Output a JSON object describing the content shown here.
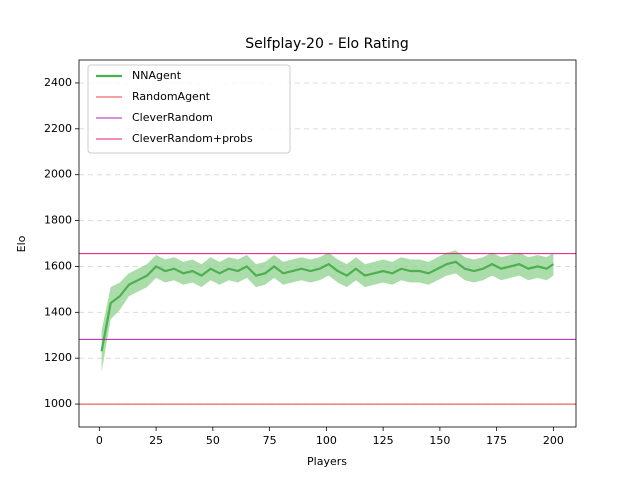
{
  "chart_data": {
    "type": "line",
    "title": "Selfplay-20 - Elo Rating",
    "x_label": "Players",
    "y_label": "Elo",
    "xlim": [
      -8.95,
      209.95
    ],
    "ylim": [
      900,
      2500
    ],
    "xticks": [
      0,
      25,
      50,
      75,
      100,
      125,
      150,
      175,
      200
    ],
    "yticks": [
      1000,
      1200,
      1400,
      1600,
      1800,
      2000,
      2200,
      2400
    ],
    "grid": "y",
    "legend": "upper left",
    "series": [
      {
        "name": "NNAgent",
        "color": "#4caf50",
        "band_color": "#8fd18f",
        "x": [
          1,
          5,
          9,
          13,
          17,
          21,
          25,
          29,
          33,
          37,
          41,
          45,
          49,
          53,
          57,
          61,
          65,
          69,
          73,
          77,
          81,
          85,
          89,
          93,
          97,
          101,
          105,
          109,
          113,
          117,
          121,
          125,
          129,
          133,
          137,
          141,
          145,
          149,
          153,
          157,
          161,
          165,
          169,
          173,
          177,
          181,
          185,
          189,
          193,
          197,
          200
        ],
        "values": [
          1230,
          1440,
          1470,
          1520,
          1540,
          1560,
          1600,
          1580,
          1590,
          1570,
          1580,
          1560,
          1590,
          1570,
          1590,
          1580,
          1600,
          1560,
          1570,
          1600,
          1570,
          1580,
          1590,
          1580,
          1590,
          1610,
          1580,
          1560,
          1590,
          1560,
          1570,
          1580,
          1570,
          1590,
          1580,
          1580,
          1570,
          1590,
          1610,
          1620,
          1590,
          1580,
          1590,
          1610,
          1590,
          1600,
          1610,
          1590,
          1600,
          1590,
          1610
        ],
        "lower": [
          1140,
          1370,
          1410,
          1470,
          1490,
          1510,
          1550,
          1530,
          1540,
          1520,
          1530,
          1510,
          1540,
          1520,
          1540,
          1530,
          1550,
          1510,
          1520,
          1550,
          1520,
          1530,
          1540,
          1530,
          1540,
          1560,
          1530,
          1510,
          1540,
          1510,
          1520,
          1530,
          1520,
          1540,
          1530,
          1530,
          1520,
          1540,
          1560,
          1570,
          1540,
          1530,
          1540,
          1560,
          1540,
          1550,
          1560,
          1540,
          1550,
          1540,
          1560
        ],
        "upper": [
          1320,
          1510,
          1530,
          1570,
          1590,
          1610,
          1650,
          1630,
          1640,
          1620,
          1630,
          1610,
          1640,
          1620,
          1640,
          1630,
          1650,
          1610,
          1620,
          1650,
          1620,
          1630,
          1640,
          1630,
          1640,
          1660,
          1630,
          1610,
          1640,
          1610,
          1620,
          1630,
          1620,
          1640,
          1630,
          1630,
          1620,
          1640,
          1660,
          1670,
          1640,
          1630,
          1640,
          1660,
          1640,
          1650,
          1660,
          1640,
          1650,
          1640,
          1660
        ]
      }
    ],
    "hlines": [
      {
        "name": "RandomAgent",
        "color": "#e8403c",
        "value": 1000
      },
      {
        "name": "CleverRandom",
        "color": "#b41fb4",
        "value": 1282
      },
      {
        "name": "CleverRandom+probs",
        "color": "#e0187f",
        "value": 1656
      }
    ]
  }
}
